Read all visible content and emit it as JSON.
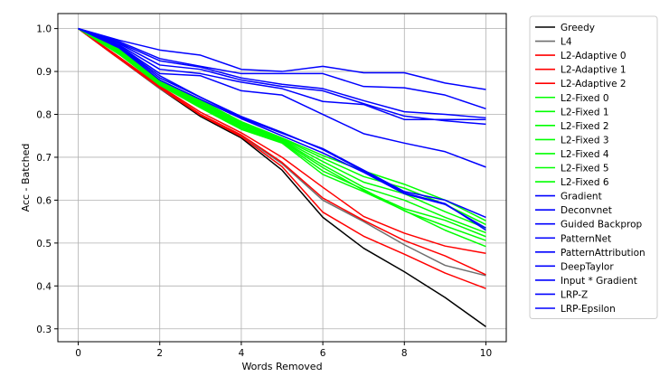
{
  "chart_data": {
    "type": "line",
    "title": "",
    "xlabel": "Words Removed",
    "ylabel": "Acc - Batched",
    "xlim": [
      -0.5,
      10.5
    ],
    "ylim": [
      0.27,
      1.035
    ],
    "xticks": [
      0,
      2,
      4,
      6,
      8,
      10
    ],
    "yticks": [
      0.3,
      0.4,
      0.5,
      0.6,
      0.7,
      0.8,
      0.9,
      1.0
    ],
    "grid": true,
    "legend_position": "outside-right",
    "x": [
      0,
      1,
      2,
      3,
      4,
      5,
      6,
      7,
      8,
      9,
      10
    ],
    "series": [
      {
        "name": "Greedy",
        "color": "#000000",
        "values": [
          1.0,
          0.93,
          0.86,
          0.795,
          0.745,
          0.67,
          0.56,
          0.488,
          0.433,
          0.373,
          0.305
        ]
      },
      {
        "name": "L4",
        "color": "#6e6e6e",
        "values": [
          1.0,
          0.93,
          0.86,
          0.8,
          0.75,
          0.685,
          0.6,
          0.55,
          0.496,
          0.448,
          0.424
        ]
      },
      {
        "name": "L2-Adaptive 0",
        "color": "#ff0000",
        "values": [
          1.0,
          0.93,
          0.862,
          0.798,
          0.748,
          0.678,
          0.572,
          0.516,
          0.474,
          0.43,
          0.394
        ]
      },
      {
        "name": "L2-Adaptive 1",
        "color": "#ff0000",
        "values": [
          1.0,
          0.932,
          0.864,
          0.8,
          0.752,
          0.688,
          0.605,
          0.553,
          0.506,
          0.47,
          0.426
        ]
      },
      {
        "name": "L2-Adaptive 2",
        "color": "#ff0000",
        "values": [
          1.0,
          0.934,
          0.866,
          0.805,
          0.757,
          0.7,
          0.63,
          0.562,
          0.523,
          0.493,
          0.476
        ]
      },
      {
        "name": "L2-Fixed 0",
        "color": "#00ff00",
        "values": [
          1.0,
          0.94,
          0.868,
          0.815,
          0.765,
          0.733,
          0.66,
          0.62,
          0.576,
          0.53,
          0.492
        ]
      },
      {
        "name": "L2-Fixed 1",
        "color": "#00ff00",
        "values": [
          1.0,
          0.942,
          0.87,
          0.818,
          0.768,
          0.735,
          0.668,
          0.625,
          0.575,
          0.54,
          0.506
        ]
      },
      {
        "name": "L2-Fixed 2",
        "color": "#00ff00",
        "values": [
          1.0,
          0.944,
          0.872,
          0.821,
          0.771,
          0.737,
          0.676,
          0.623,
          0.58,
          0.553,
          0.515
        ]
      },
      {
        "name": "L2-Fixed 3",
        "color": "#00ff00",
        "values": [
          1.0,
          0.946,
          0.874,
          0.824,
          0.774,
          0.739,
          0.682,
          0.63,
          0.6,
          0.56,
          0.524
        ]
      },
      {
        "name": "L2-Fixed 4",
        "color": "#00ff00",
        "values": [
          1.0,
          0.948,
          0.876,
          0.827,
          0.777,
          0.741,
          0.69,
          0.642,
          0.615,
          0.573,
          0.535
        ]
      },
      {
        "name": "L2-Fixed 5",
        "color": "#00ff00",
        "values": [
          1.0,
          0.95,
          0.878,
          0.83,
          0.78,
          0.743,
          0.698,
          0.655,
          0.628,
          0.59,
          0.543
        ]
      },
      {
        "name": "L2-Fixed 6",
        "color": "#00ff00",
        "values": [
          1.0,
          0.952,
          0.88,
          0.833,
          0.783,
          0.745,
          0.704,
          0.668,
          0.637,
          0.6,
          0.552
        ]
      },
      {
        "name": "Gradient",
        "color": "#0000ff",
        "values": [
          1.0,
          0.955,
          0.88,
          0.835,
          0.79,
          0.75,
          0.71,
          0.665,
          0.615,
          0.59,
          0.535
        ]
      },
      {
        "name": "Deconvnet",
        "color": "#0000ff",
        "values": [
          1.0,
          0.957,
          0.885,
          0.84,
          0.795,
          0.758,
          0.718,
          0.668,
          0.617,
          0.592,
          0.53
        ]
      },
      {
        "name": "Guided Backprop",
        "color": "#0000ff",
        "values": [
          1.0,
          0.958,
          0.89,
          0.84,
          0.792,
          0.756,
          0.72,
          0.67,
          0.62,
          0.6,
          0.56
        ]
      },
      {
        "name": "PatternNet",
        "color": "#0000ff",
        "values": [
          1.0,
          0.96,
          0.895,
          0.89,
          0.855,
          0.845,
          0.8,
          0.755,
          0.733,
          0.713,
          0.677
        ]
      },
      {
        "name": "PatternAttribution",
        "color": "#0000ff",
        "values": [
          1.0,
          0.962,
          0.905,
          0.895,
          0.875,
          0.86,
          0.83,
          0.823,
          0.788,
          0.788,
          0.788
        ]
      },
      {
        "name": "DeepTaylor",
        "color": "#0000ff",
        "values": [
          1.0,
          0.965,
          0.915,
          0.905,
          0.88,
          0.865,
          0.855,
          0.825,
          0.796,
          0.785,
          0.777
        ]
      },
      {
        "name": "Input * Gradient",
        "color": "#0000ff",
        "values": [
          1.0,
          0.967,
          0.925,
          0.91,
          0.885,
          0.87,
          0.86,
          0.832,
          0.806,
          0.8,
          0.792
        ]
      },
      {
        "name": "LRP-Z",
        "color": "#0000ff",
        "values": [
          1.0,
          0.97,
          0.93,
          0.912,
          0.895,
          0.895,
          0.895,
          0.865,
          0.862,
          0.845,
          0.813
        ]
      },
      {
        "name": "LRP-Epsilon",
        "color": "#0000ff",
        "values": [
          1.0,
          0.973,
          0.95,
          0.938,
          0.905,
          0.9,
          0.912,
          0.897,
          0.897,
          0.873,
          0.858
        ]
      }
    ]
  }
}
